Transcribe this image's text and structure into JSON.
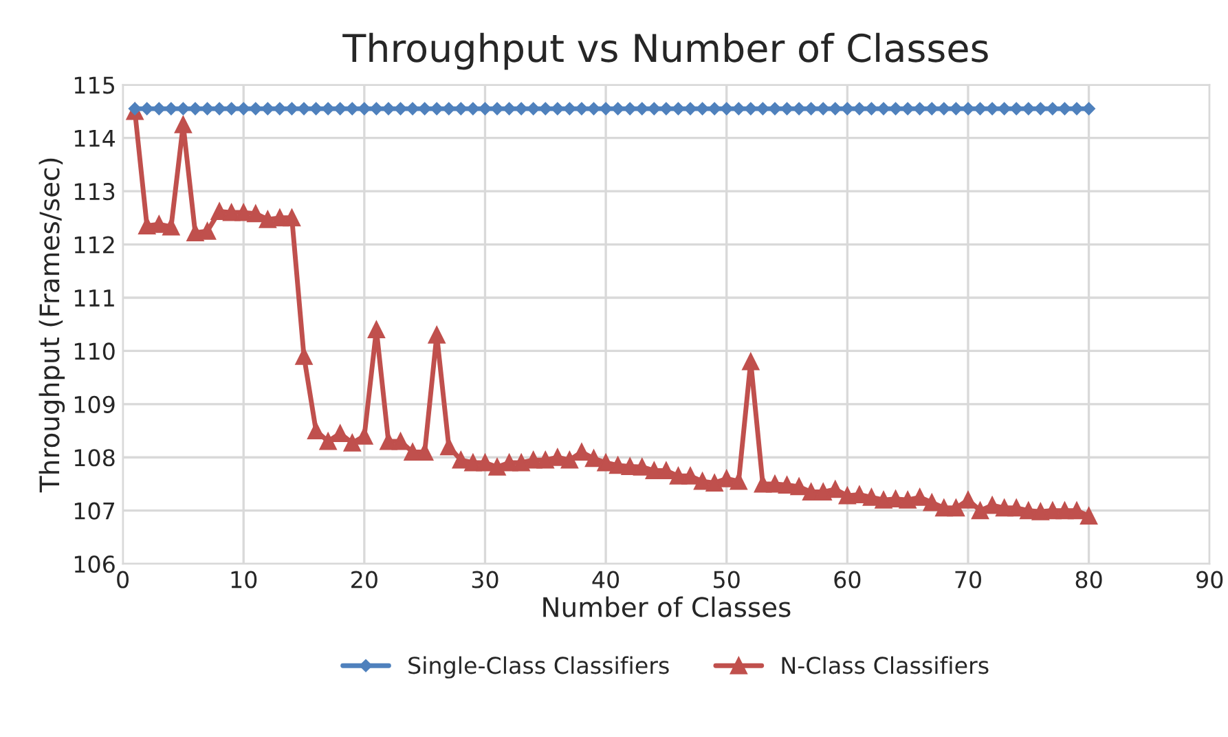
{
  "chart_data": {
    "type": "line",
    "title": "Throughput vs Number of Classes",
    "xlabel": "Number of Classes",
    "ylabel": "Throughput (Frames/sec)",
    "x": [
      1,
      2,
      3,
      4,
      5,
      6,
      7,
      8,
      9,
      10,
      11,
      12,
      13,
      14,
      15,
      16,
      17,
      18,
      19,
      20,
      21,
      22,
      23,
      24,
      25,
      26,
      27,
      28,
      29,
      30,
      31,
      32,
      33,
      34,
      35,
      36,
      37,
      38,
      39,
      40,
      41,
      42,
      43,
      44,
      45,
      46,
      47,
      48,
      49,
      50,
      51,
      52,
      53,
      54,
      55,
      56,
      57,
      58,
      59,
      60,
      61,
      62,
      63,
      64,
      65,
      66,
      67,
      68,
      69,
      70,
      71,
      72,
      73,
      74,
      75,
      76,
      77,
      78,
      79,
      80
    ],
    "series": [
      {
        "name": "Single-Class Classifiers",
        "color": "#4f81bd",
        "marker": "diamond",
        "values": [
          114.55,
          114.55,
          114.55,
          114.55,
          114.55,
          114.55,
          114.55,
          114.55,
          114.55,
          114.55,
          114.55,
          114.55,
          114.55,
          114.55,
          114.55,
          114.55,
          114.55,
          114.55,
          114.55,
          114.55,
          114.55,
          114.55,
          114.55,
          114.55,
          114.55,
          114.55,
          114.55,
          114.55,
          114.55,
          114.55,
          114.55,
          114.55,
          114.55,
          114.55,
          114.55,
          114.55,
          114.55,
          114.55,
          114.55,
          114.55,
          114.55,
          114.55,
          114.55,
          114.55,
          114.55,
          114.55,
          114.55,
          114.55,
          114.55,
          114.55,
          114.55,
          114.55,
          114.55,
          114.55,
          114.55,
          114.55,
          114.55,
          114.55,
          114.55,
          114.55,
          114.55,
          114.55,
          114.55,
          114.55,
          114.55,
          114.55,
          114.55,
          114.55,
          114.55,
          114.55,
          114.55,
          114.55,
          114.55,
          114.55,
          114.55,
          114.55,
          114.55,
          114.55,
          114.55,
          114.55
        ]
      },
      {
        "name": "N-Class Classifiers",
        "color": "#c0504d",
        "marker": "triangle",
        "values": [
          114.5,
          112.35,
          112.38,
          112.33,
          114.25,
          112.22,
          112.25,
          112.62,
          112.6,
          112.6,
          112.58,
          112.47,
          112.5,
          112.5,
          109.9,
          108.5,
          108.3,
          108.45,
          108.27,
          108.4,
          110.4,
          108.3,
          108.3,
          108.1,
          108.1,
          110.3,
          108.2,
          107.95,
          107.9,
          107.9,
          107.82,
          107.9,
          107.9,
          107.95,
          107.95,
          108.0,
          107.95,
          108.1,
          107.98,
          107.9,
          107.85,
          107.83,
          107.82,
          107.75,
          107.75,
          107.65,
          107.65,
          107.55,
          107.52,
          107.6,
          107.55,
          109.8,
          107.5,
          107.5,
          107.48,
          107.45,
          107.35,
          107.35,
          107.4,
          107.28,
          107.3,
          107.25,
          107.2,
          107.22,
          107.2,
          107.25,
          107.15,
          107.05,
          107.05,
          107.2,
          107.0,
          107.1,
          107.05,
          107.05,
          107.0,
          106.98,
          107.0,
          107.0,
          107.0,
          106.9
        ]
      }
    ],
    "xlim": [
      0,
      90
    ],
    "xticks": [
      0,
      10,
      20,
      30,
      40,
      50,
      60,
      70,
      80,
      90
    ],
    "ylim": [
      106,
      115
    ],
    "yticks": [
      106,
      107,
      108,
      109,
      110,
      111,
      112,
      113,
      114,
      115
    ],
    "grid": true,
    "legend": "bottom"
  }
}
